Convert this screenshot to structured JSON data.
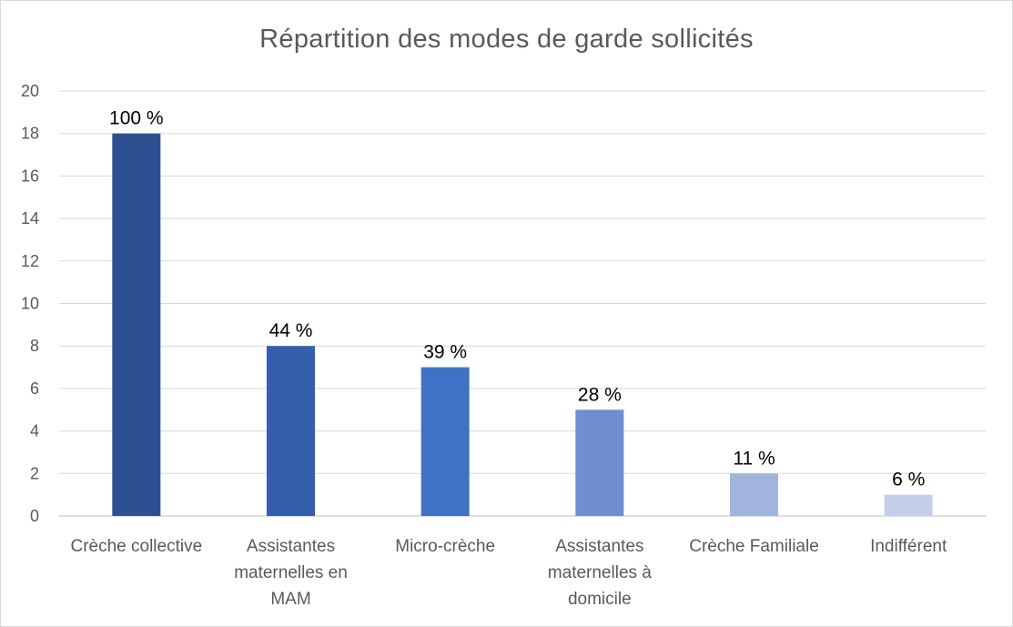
{
  "chart_data": {
    "type": "bar",
    "title": "Répartition des modes de garde sollicités",
    "categories": [
      [
        "Crèche collective"
      ],
      [
        "Assistantes",
        "maternelles en",
        "MAM"
      ],
      [
        "Micro-crèche"
      ],
      [
        "Assistantes",
        "maternelles à",
        "domicile"
      ],
      [
        "Crèche Familiale"
      ],
      [
        "Indifférent"
      ]
    ],
    "values": [
      18,
      8,
      7,
      5,
      2,
      1
    ],
    "data_labels": [
      "100 %",
      "44 %",
      "39 %",
      "28 %",
      "11 %",
      "6 %"
    ],
    "bar_colors": [
      "#2f5090",
      "#355fad",
      "#3f72c4",
      "#6f8fd0",
      "#a1b4de",
      "#c3cfea"
    ],
    "ylim": [
      0,
      20
    ],
    "yticks": [
      0,
      2,
      4,
      6,
      8,
      10,
      12,
      14,
      16,
      18,
      20
    ],
    "xlabel": "",
    "ylabel": "",
    "grid": true,
    "legend": "none"
  }
}
